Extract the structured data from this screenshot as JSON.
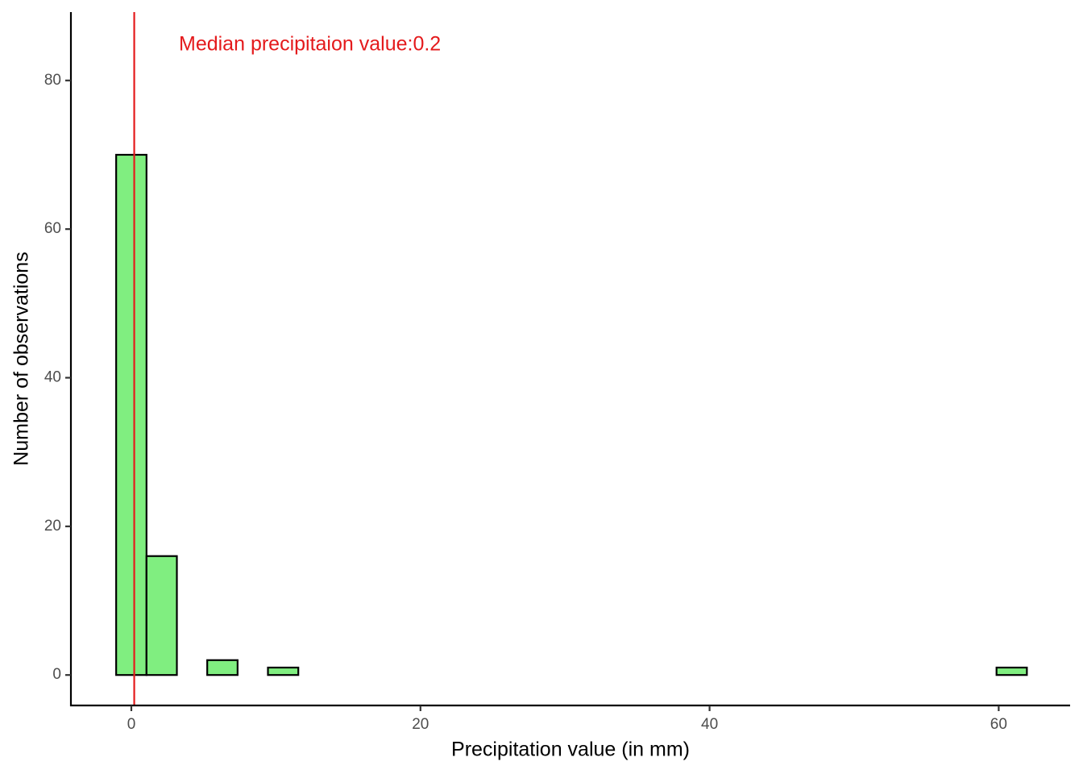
{
  "chart_data": {
    "type": "histogram",
    "annotation": "Median precipitaion value:0.2",
    "x_label": "Precipitation value (in mm)",
    "y_label": "Number of observations",
    "bins": [
      -1.05,
      1.05,
      3.15,
      5.25,
      7.35,
      9.45,
      11.55,
      13.65,
      15.75,
      17.85,
      19.95,
      22.05,
      24.15,
      26.25,
      28.35,
      30.45,
      32.55,
      34.65,
      36.75,
      38.85,
      40.95,
      43.05,
      45.15,
      47.25,
      49.35,
      51.45,
      53.55,
      55.65,
      57.75,
      59.85,
      61.95
    ],
    "values": [
      70,
      16,
      0,
      2,
      0,
      1,
      0,
      0,
      0,
      0,
      0,
      0,
      0,
      0,
      0,
      0,
      0,
      0,
      0,
      0,
      0,
      0,
      0,
      0,
      0,
      0,
      0,
      0,
      0,
      1
    ],
    "color": "#80ee80",
    "median": 0.2,
    "median_color": "#e41a1c",
    "xlim": [
      -4.18,
      64.94
    ],
    "ylim": [
      -4.1,
      89.2
    ],
    "xticks": [
      0,
      20,
      40,
      60
    ],
    "yticks": [
      0,
      20,
      40,
      60,
      80
    ],
    "grid": false
  }
}
